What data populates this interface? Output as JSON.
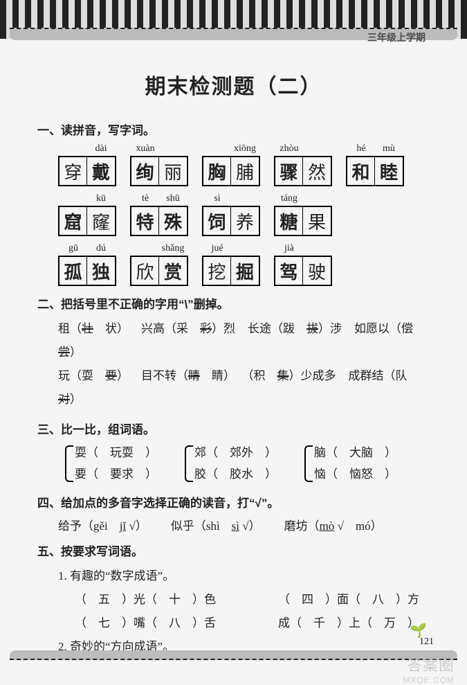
{
  "header_label": "三年级上学期",
  "title": "期末检测题（二）",
  "page_number": "121",
  "watermark": "答案圈",
  "watermark_sub": "MXQE.COM",
  "sec1": {
    "head": "一、读拼音，写字词。",
    "rows": [
      [
        {
          "pinyin": [
            "",
            "dài"
          ],
          "cells": [
            {
              "t": "穿",
              "h": false
            },
            {
              "t": "戴",
              "h": true
            }
          ]
        },
        {
          "pinyin": [
            "xuàn",
            ""
          ],
          "cells": [
            {
              "t": "绚",
              "h": true
            },
            {
              "t": "丽",
              "h": false
            }
          ]
        },
        {
          "pinyin": [
            "",
            "xiōng"
          ],
          "cells": [
            {
              "t": "胸",
              "h": true
            },
            {
              "t": "脯",
              "h": false
            }
          ]
        },
        {
          "pinyin": [
            "zhòu",
            ""
          ],
          "cells": [
            {
              "t": "骤",
              "h": true
            },
            {
              "t": "然",
              "h": false
            }
          ]
        },
        {
          "pinyin": [
            "hé",
            "mù"
          ],
          "cells": [
            {
              "t": "和",
              "h": true
            },
            {
              "t": "睦",
              "h": true
            }
          ]
        }
      ],
      [
        {
          "pinyin": [
            "",
            "kū"
          ],
          "cells": [
            {
              "t": "窟",
              "h": true
            },
            {
              "t": "窿",
              "h": false
            }
          ]
        },
        {
          "pinyin": [
            "tè",
            "shū"
          ],
          "cells": [
            {
              "t": "特",
              "h": true
            },
            {
              "t": "殊",
              "h": true
            }
          ]
        },
        {
          "pinyin": [
            "sì",
            ""
          ],
          "cells": [
            {
              "t": "饲",
              "h": true
            },
            {
              "t": "养",
              "h": false
            }
          ]
        },
        {
          "pinyin": [
            "táng",
            ""
          ],
          "cells": [
            {
              "t": "糖",
              "h": true
            },
            {
              "t": "果",
              "h": false
            }
          ]
        }
      ],
      [
        {
          "pinyin": [
            "gū",
            "dú"
          ],
          "cells": [
            {
              "t": "孤",
              "h": true
            },
            {
              "t": "独",
              "h": true
            }
          ]
        },
        {
          "pinyin": [
            "",
            "shǎng"
          ],
          "cells": [
            {
              "t": "欣",
              "h": false
            },
            {
              "t": "赏",
              "h": true
            }
          ]
        },
        {
          "pinyin": [
            "jué",
            ""
          ],
          "cells": [
            {
              "t": "挖",
              "h": false
            },
            {
              "t": "掘",
              "h": true
            }
          ]
        },
        {
          "pinyin": [
            "jià",
            ""
          ],
          "cells": [
            {
              "t": "驾",
              "h": true
            },
            {
              "t": "驶",
              "h": false
            }
          ]
        }
      ]
    ]
  },
  "sec2": {
    "head": "二、把括号里不正确的字用“\\”删掉。",
    "lines": [
      [
        {
          "pre": "租（",
          "a": "壮",
          "b": "状",
          "strike": "a",
          "post": "）"
        },
        {
          "pre": "兴高（",
          "a": "采",
          "b": "彩",
          "strike": "b",
          "post": "）烈"
        },
        {
          "pre": "长途（",
          "a": "跋",
          "b": "拔",
          "strike": "b",
          "post": "）涉"
        },
        {
          "pre": "如愿以（",
          "a": "偿",
          "b": "尝",
          "strike": "b",
          "post": "）"
        }
      ],
      [
        {
          "pre": "玩（",
          "a": "耍",
          "b": "要",
          "strike": "b",
          "post": "）"
        },
        {
          "pre": "目不转（",
          "a": "睛",
          "b": "睛",
          "strike": "a",
          "post": "）"
        },
        {
          "pre": "（",
          "a": "积",
          "b": "集",
          "strike": "b",
          "post": "）少成多"
        },
        {
          "pre": "成群结（",
          "a": "队",
          "b": "对",
          "strike": "b",
          "post": "）"
        }
      ]
    ]
  },
  "sec3": {
    "head": "三、比一比，组词语。",
    "pairs": [
      [
        {
          "c": "耍",
          "w": "玩耍"
        },
        {
          "c": "要",
          "w": "要求"
        }
      ],
      [
        {
          "c": "郊",
          "w": "郊外"
        },
        {
          "c": "胶",
          "w": "胶水"
        }
      ],
      [
        {
          "c": "脑",
          "w": "大脑"
        },
        {
          "c": "恼",
          "w": "恼怒"
        }
      ]
    ]
  },
  "sec4": {
    "head": "四、给加点的多音字选择正确的读音，打“√”。",
    "items": [
      {
        "word": "给予",
        "opts": [
          "gěi",
          "jǐ"
        ],
        "correct": 1
      },
      {
        "word": "似乎",
        "opts": [
          "shì",
          "sì"
        ],
        "correct": 1
      },
      {
        "word": "磨坊",
        "opts": [
          "mò",
          "mó"
        ],
        "correct": 0
      }
    ]
  },
  "sec5": {
    "head": "五、按要求写词语。",
    "q1_label": "1. 有趣的“数字成语”。",
    "q1_items": [
      {
        "a": "五",
        "b": "十",
        "t1": "（",
        "m": "）光（",
        "t2": "）色"
      },
      {
        "a": "四",
        "b": "八",
        "t1": "（",
        "m": "）面（",
        "t2": "）方"
      },
      {
        "a": "七",
        "b": "八",
        "t1": "（",
        "m": "）嘴（",
        "t2": "）舌"
      },
      {
        "a": "千",
        "b": "万",
        "t1": "成（",
        "m": "）上（",
        "t2": "）"
      }
    ],
    "q2_label": "2. 奇妙的“方向成语”。"
  }
}
